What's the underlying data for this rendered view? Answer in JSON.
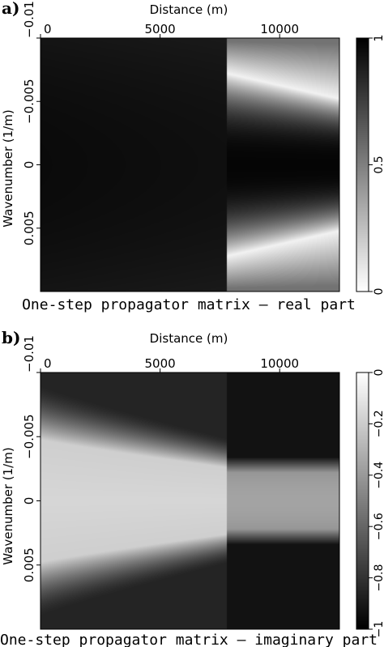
{
  "chart_data": [
    {
      "panel_label": "a)",
      "type": "heatmap",
      "title": "One-step propagator matrix – real part",
      "xlabel": "Distance (m)",
      "ylabel": "Wavenumber (1/m)",
      "x_ticks": [
        "0",
        "5000",
        "10000"
      ],
      "x_tick_values": [
        0,
        5000,
        10000
      ],
      "xlim": [
        0,
        12500
      ],
      "y_ticks": [
        "−0.01",
        "−0.005",
        "0",
        "0.005"
      ],
      "y_tick_values": [
        -0.01,
        -0.005,
        0,
        0.005
      ],
      "ylim": [
        -0.01,
        0.01
      ],
      "colorbar": {
        "ticks": [
          "0",
          "0.5",
          "1"
        ],
        "tick_values": [
          0,
          0.5,
          1
        ],
        "range": [
          0,
          1
        ],
        "colormap": "gray, white = 0, black = 1"
      },
      "field": {
        "boundary_x": 7800,
        "left_value": 0.96,
        "right_center_value": 0.98,
        "right_band_k_at_x_start": 0.0072,
        "right_band_k_at_x_end": 0.0052,
        "right_band_min_value": 0.05,
        "right_edge_value": 0.55
      }
    },
    {
      "panel_label": "b)",
      "type": "heatmap",
      "title": "One-step propagator matrix – imaginary part",
      "xlabel": "Distance (m)",
      "ylabel": "Wavenumber (1/m)",
      "x_ticks": [
        "0",
        "5000",
        "10000"
      ],
      "x_tick_values": [
        0,
        5000,
        10000
      ],
      "xlim": [
        0,
        12500
      ],
      "y_ticks": [
        "−0.01",
        "−0.005",
        "0",
        "0.005"
      ],
      "y_tick_values": [
        -0.01,
        -0.005,
        0,
        0.005
      ],
      "ylim": [
        -0.01,
        0.01
      ],
      "colorbar": {
        "ticks": [
          "0",
          "−0.2",
          "−0.4",
          "−0.6",
          "−0.8",
          "−1"
        ],
        "tick_values": [
          0,
          -0.2,
          -0.4,
          -0.6,
          -0.8,
          -1
        ],
        "range": [
          -1,
          0
        ],
        "colormap": "gray, white = 0, black = −1"
      },
      "field": {
        "boundary_x": 7800,
        "left_center_value": -0.16,
        "left_halfwidth_at_x_start": 0.0048,
        "left_halfwidth_at_x_end": 0.0026,
        "left_edge_value": -0.86,
        "right_center_value": -0.36,
        "right_halfwidth": 0.0022,
        "right_edge_value": -0.93
      }
    }
  ]
}
